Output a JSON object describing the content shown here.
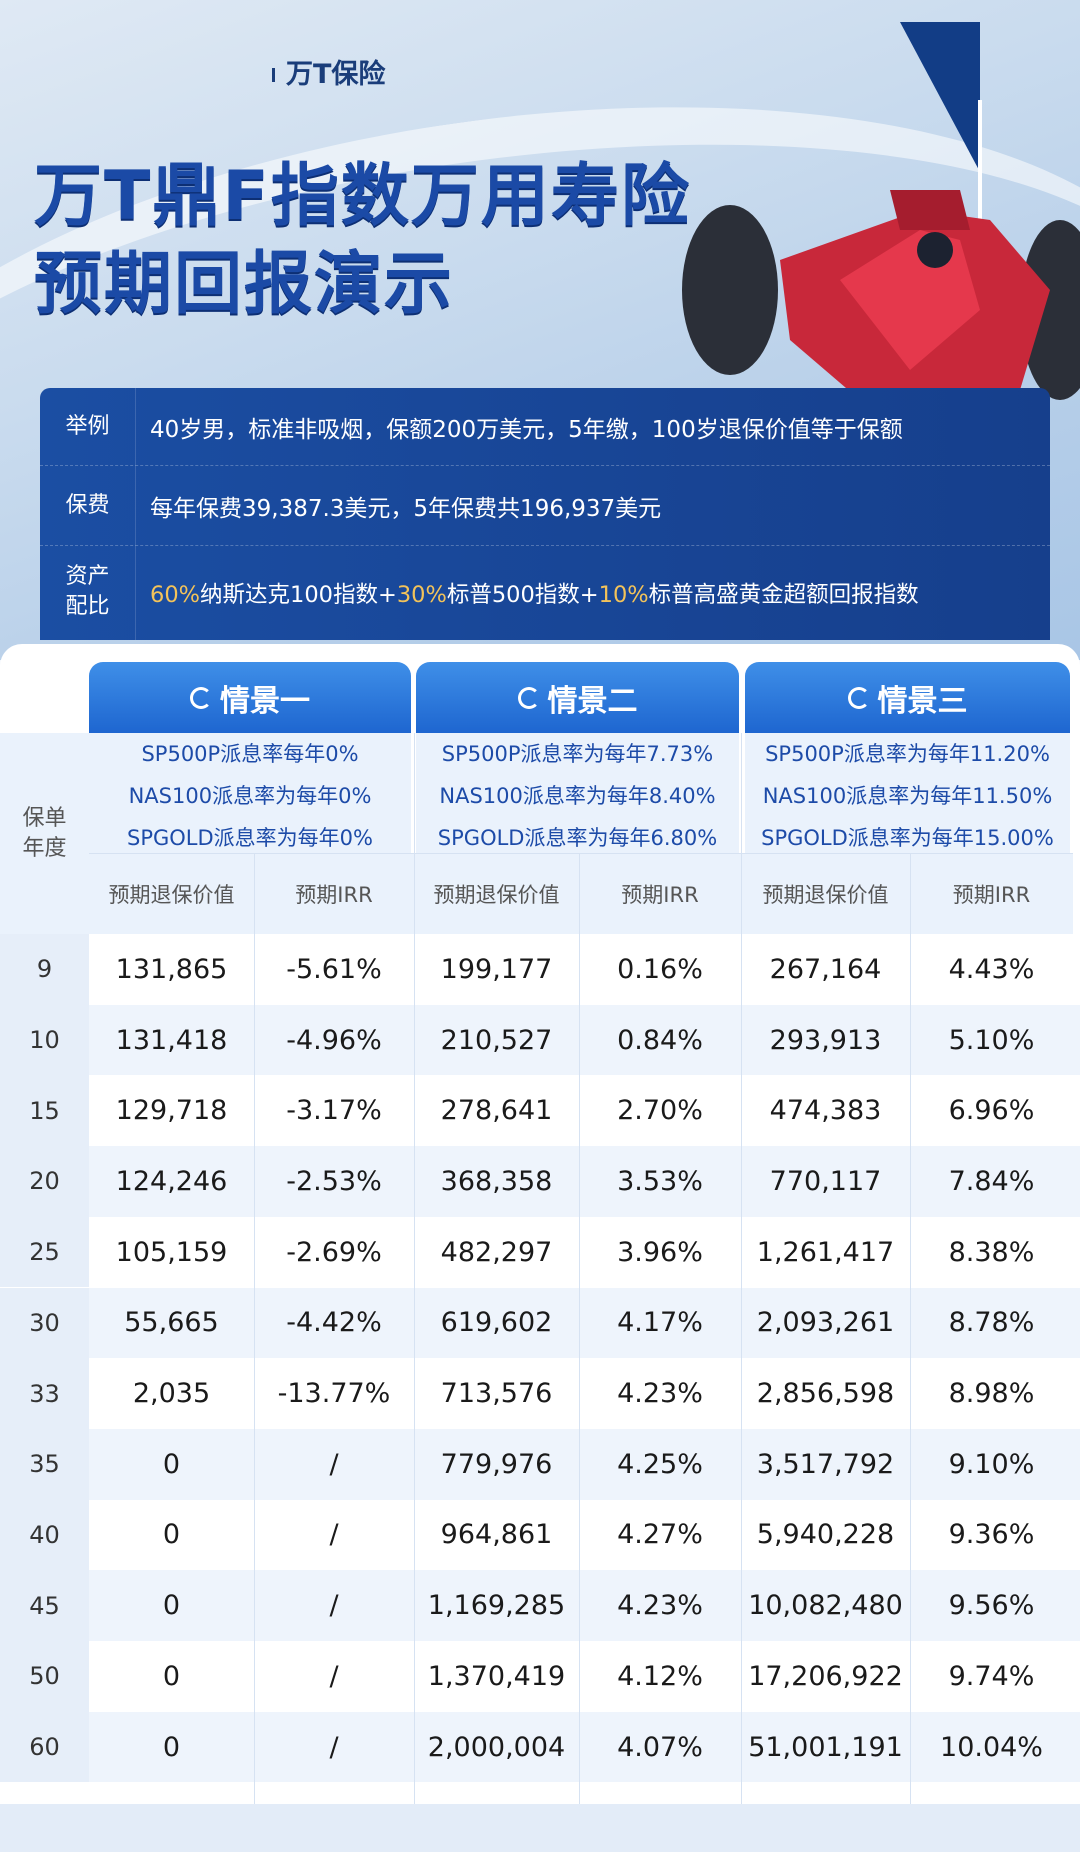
{
  "brand": "万T保险",
  "title_line1": "万T鼎F指数万用寿险",
  "title_line2": "预期回报演示",
  "info": {
    "example_label": "举例",
    "example_value": "40岁男，标准非吸烟，保额200万美元，5年缴，100岁退保价值等于保额",
    "premium_label": "保费",
    "premium_value": "每年保费39,387.3美元，5年保费共196,937美元",
    "alloc_label_1": "资产",
    "alloc_label_2": "配比",
    "alloc": [
      {
        "pct": "60%",
        "name": "纳斯达克100指数+"
      },
      {
        "pct": "30%",
        "name": "标普500指数+"
      },
      {
        "pct": "10%",
        "name": "标普高盛黄金超额回报指数"
      }
    ]
  },
  "table": {
    "year_header": "保单年度",
    "scenarios": [
      {
        "name": "情景一",
        "rates": [
          "SP500P派息率每年0%",
          "NAS100派息率为每年0%",
          "SPGOLD派息率为每年0%"
        ]
      },
      {
        "name": "情景二",
        "rates": [
          "SP500P派息率为每年7.73%",
          "NAS100派息率为每年8.40%",
          "SPGOLD派息率为每年6.80%"
        ]
      },
      {
        "name": "情景三",
        "rates": [
          "SP500P派息率为每年11.20%",
          "NAS100派息率为每年11.50%",
          "SPGOLD派息率为每年15.00%"
        ]
      }
    ],
    "col_value": "预期退保价值",
    "col_irr": "预期IRR",
    "rows": [
      [
        "9",
        "131,865",
        "-5.61%",
        "199,177",
        "0.16%",
        "267,164",
        "4.43%"
      ],
      [
        "10",
        "131,418",
        "-4.96%",
        "210,527",
        "0.84%",
        "293,913",
        "5.10%"
      ],
      [
        "15",
        "129,718",
        "-3.17%",
        "278,641",
        "2.70%",
        "474,383",
        "6.96%"
      ],
      [
        "20",
        "124,246",
        "-2.53%",
        "368,358",
        "3.53%",
        "770,117",
        "7.84%"
      ],
      [
        "25",
        "105,159",
        "-2.69%",
        "482,297",
        "3.96%",
        "1,261,417",
        "8.38%"
      ],
      [
        "30",
        "55,665",
        "-4.42%",
        "619,602",
        "4.17%",
        "2,093,261",
        "8.78%"
      ],
      [
        "33",
        "2,035",
        "-13.77%",
        "713,576",
        "4.23%",
        "2,856,598",
        "8.98%"
      ],
      [
        "35",
        "0",
        "/",
        "779,976",
        "4.25%",
        "3,517,792",
        "9.10%"
      ],
      [
        "40",
        "0",
        "/",
        "964,861",
        "4.27%",
        "5,940,228",
        "9.36%"
      ],
      [
        "45",
        "0",
        "/",
        "1,169,285",
        "4.23%",
        "10,082,480",
        "9.56%"
      ],
      [
        "50",
        "0",
        "/",
        "1,370,419",
        "4.12%",
        "17,206,922",
        "9.74%"
      ],
      [
        "60",
        "0",
        "/",
        "2,000,004",
        "4.07%",
        "51,001,191",
        "10.04%"
      ]
    ]
  },
  "colors": {
    "title": "#1b4aa6",
    "panel": "#1b4ea3",
    "accent_gold": "#f3c35a",
    "tab": "#1e66d0"
  }
}
